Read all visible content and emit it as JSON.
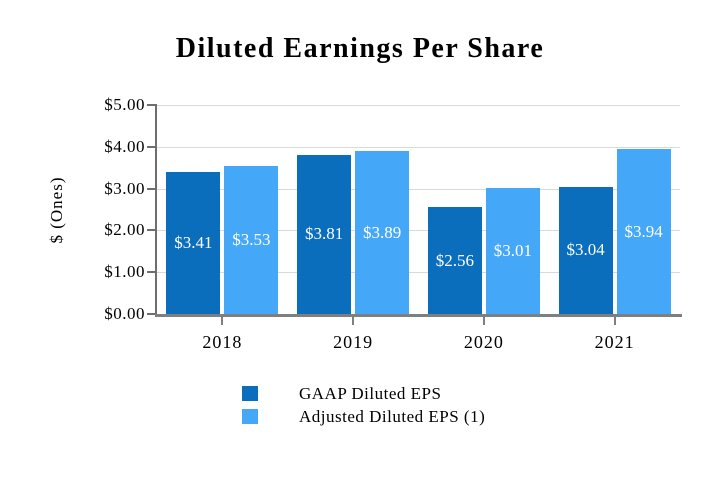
{
  "chart_data": {
    "type": "bar",
    "title": "Diluted Earnings Per Share",
    "ylabel": "$ (Ones)",
    "categories": [
      "2018",
      "2019",
      "2020",
      "2021"
    ],
    "series": [
      {
        "name": "GAAP Diluted EPS",
        "color": "#0A6EBD",
        "values": [
          3.41,
          3.81,
          2.56,
          3.04
        ],
        "labels": [
          "$3.41",
          "$3.81",
          "$2.56",
          "$3.04"
        ]
      },
      {
        "name": "Adjusted Diluted EPS (1)",
        "color": "#44A7F8",
        "values": [
          3.53,
          3.89,
          3.01,
          3.94
        ],
        "labels": [
          "$3.53",
          "$3.89",
          "$3.01",
          "$3.94"
        ]
      }
    ],
    "ylim": [
      0,
      5
    ],
    "ytick_step": 1,
    "ytick_labels": [
      "$0.00",
      "$1.00",
      "$2.00",
      "$3.00",
      "$4.00",
      "$5.00"
    ],
    "grid": true,
    "legend_position": "bottom",
    "data_label_color": "#FFFFFF",
    "gridline_color": "#D9D9D9",
    "axis_color": "#6E6E6E",
    "x_axis_color": "#7F7F7F"
  }
}
